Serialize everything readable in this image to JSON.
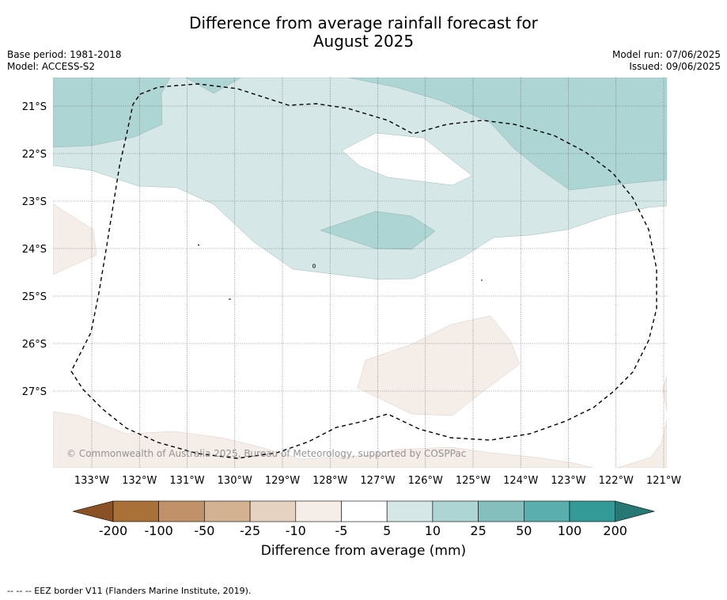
{
  "title": {
    "line1": "Difference from average rainfall forecast for",
    "line2": "August 2025"
  },
  "meta_left": {
    "base_period": "Base period: 1981-2018",
    "model": "Model: ACCESS-S2"
  },
  "meta_right": {
    "model_run": "Model run: 07/06/2025",
    "issued": "Issued: 09/06/2025"
  },
  "map": {
    "lat_labels": [
      "21°S",
      "22°S",
      "23°S",
      "24°S",
      "25°S",
      "26°S",
      "27°S"
    ],
    "lon_labels": [
      "133°W",
      "132°W",
      "131°W",
      "130°W",
      "129°W",
      "128°W",
      "127°W",
      "126°W",
      "125°W",
      "124°W",
      "123°W",
      "122°W",
      "121°W"
    ],
    "copyright": "© Commonwealth of Australia 2025, Bureau of Meteorology, supported by COSPPac",
    "colors": {
      "dry_light": "#f4ede8",
      "wet_5_10": "#d5e8e7",
      "wet_10_25": "#acd5d4"
    }
  },
  "colorbar": {
    "ticks": [
      "-200",
      "-100",
      "-50",
      "-25",
      "-10",
      "-5",
      "5",
      "10",
      "25",
      "50",
      "100",
      "200"
    ],
    "colors": [
      "#a97137",
      "#c1926a",
      "#d3b292",
      "#e6d2c1",
      "#f4ede8",
      "#ffffff",
      "#d5e8e7",
      "#acd5d4",
      "#84bfbe",
      "#5baeae",
      "#339a98"
    ],
    "low_extend_color": "#8a5224",
    "high_extend_color": "#277775",
    "title": "Difference from average (mm)"
  },
  "footer": {
    "legend_text": "--  --  -- EEZ border V11 (Flanders Marine Institute, 2019)."
  }
}
